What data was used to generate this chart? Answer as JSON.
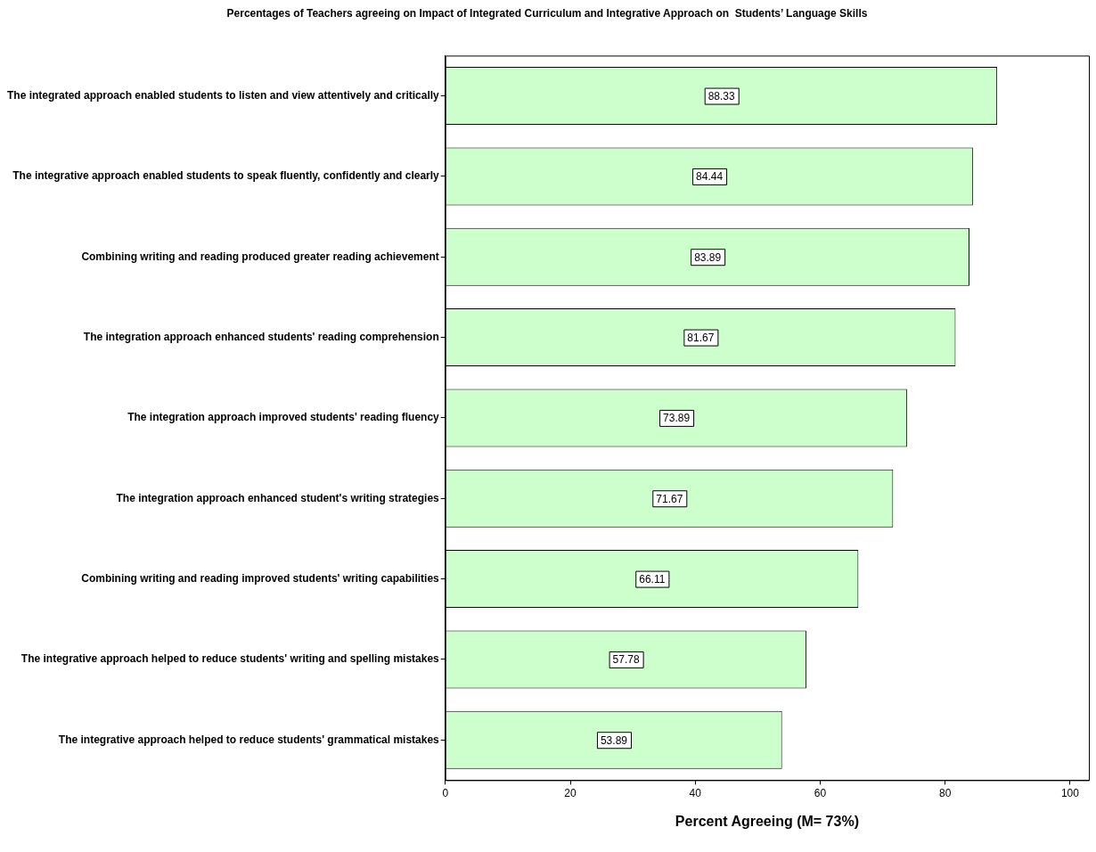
{
  "chart_data": {
    "type": "bar",
    "orientation": "horizontal",
    "title": "Percentages of Teachers agreeing on Impact of Integrated Curriculum and Integrative Approach on  Students’ Language Skills",
    "xlabel": "Percent Agreeing (M= 73%)",
    "categories": [
      "The integrated approach enabled students to listen and view attentively and critically",
      "The integrative approach enabled students to speak fluently, confidently and clearly",
      "Combining writing and reading produced greater reading achievement",
      "The integration approach enhanced students' reading comprehension",
      "The integration approach improved students' reading fluency",
      "The integration approach enhanced student's writing strategies",
      "Combining writing and reading improved students' writing capabilities",
      "The integrative approach helped to reduce students' writing and spelling mistakes",
      "The integrative approach helped to reduce students' grammatical mistakes"
    ],
    "values": [
      88.33,
      84.44,
      83.89,
      81.67,
      73.89,
      71.67,
      66.11,
      57.78,
      53.89
    ],
    "color": "#ccffcc",
    "xlim": [
      0,
      103
    ],
    "xticks": [
      0,
      20,
      40,
      60,
      80,
      100
    ],
    "data_labels": true
  }
}
